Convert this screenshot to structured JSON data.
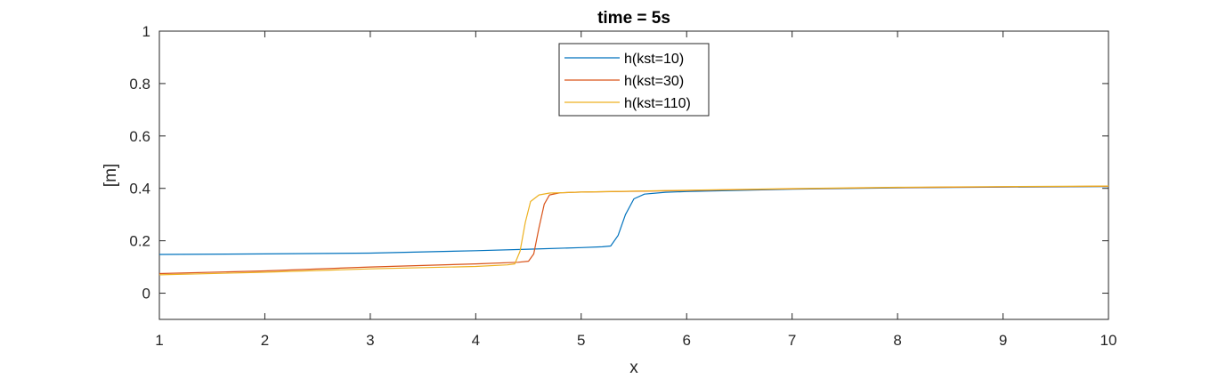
{
  "chart_data": {
    "type": "line",
    "title": "time = 5s",
    "xlabel": "x",
    "ylabel": "[m]",
    "xlim": [
      1,
      10
    ],
    "ylim": [
      -0.1,
      1
    ],
    "xticks": [
      1,
      2,
      3,
      4,
      5,
      6,
      7,
      8,
      9,
      10
    ],
    "xtick_labels": [
      "1",
      "2",
      "3",
      "4",
      "5",
      "6",
      "7",
      "8",
      "9",
      "10"
    ],
    "yticks": [
      0,
      0.2,
      0.4,
      0.6,
      0.8,
      1
    ],
    "ytick_labels": [
      "0",
      "0.2",
      "0.4",
      "0.6",
      "0.8",
      "1"
    ],
    "grid": false,
    "legend_position": "top-center",
    "series": [
      {
        "name": "h(kst=10)",
        "color": "#0072BD",
        "x": [
          1.0,
          2.0,
          3.0,
          4.0,
          4.5,
          5.0,
          5.2,
          5.28,
          5.35,
          5.42,
          5.5,
          5.6,
          5.8,
          6.0,
          7.0,
          8.0,
          9.0,
          10.0
        ],
        "y": [
          0.148,
          0.15,
          0.153,
          0.162,
          0.168,
          0.174,
          0.177,
          0.18,
          0.22,
          0.3,
          0.36,
          0.378,
          0.385,
          0.388,
          0.397,
          0.402,
          0.405,
          0.407
        ]
      },
      {
        "name": "h(kst=30)",
        "color": "#D95319",
        "x": [
          1.0,
          2.0,
          3.0,
          4.0,
          4.4,
          4.5,
          4.55,
          4.6,
          4.65,
          4.7,
          4.8,
          5.0,
          6.0,
          7.0,
          8.0,
          9.0,
          10.0
        ],
        "y": [
          0.075,
          0.085,
          0.1,
          0.112,
          0.118,
          0.122,
          0.15,
          0.25,
          0.34,
          0.375,
          0.383,
          0.386,
          0.392,
          0.398,
          0.403,
          0.406,
          0.408
        ]
      },
      {
        "name": "h(kst=110)",
        "color": "#EDB120",
        "x": [
          1.0,
          2.0,
          3.0,
          4.0,
          4.3,
          4.37,
          4.42,
          4.47,
          4.52,
          4.6,
          4.7,
          5.0,
          6.0,
          7.0,
          8.0,
          9.0,
          10.0
        ],
        "y": [
          0.07,
          0.08,
          0.093,
          0.102,
          0.108,
          0.112,
          0.16,
          0.27,
          0.35,
          0.375,
          0.382,
          0.386,
          0.393,
          0.399,
          0.404,
          0.407,
          0.409
        ]
      }
    ]
  }
}
